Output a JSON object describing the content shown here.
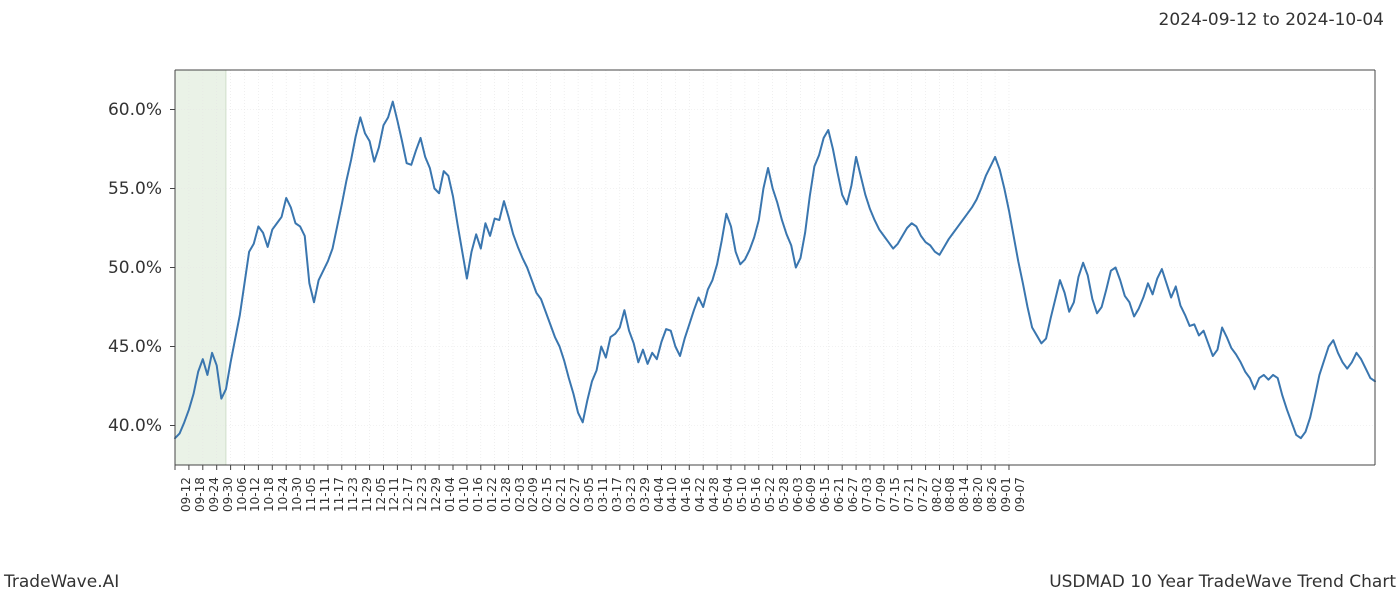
{
  "header": {
    "date_range": "2024-09-12 to 2024-10-04"
  },
  "footer": {
    "left": "TradeWave.AI",
    "right": "USDMAD 10 Year TradeWave Trend Chart"
  },
  "chart": {
    "type": "line",
    "background_color": "#ffffff",
    "line_color": "#3a76af",
    "line_width": 2,
    "grid_color": "#e5e5e5",
    "grid_dash": "1,2",
    "axis_color": "#333333",
    "spine_color": "#444444",
    "highlight_band": {
      "x_start": 0,
      "x_end": 11,
      "fill_color": "#d9e8d4",
      "fill_opacity": 0.55,
      "border_color": "#b8d0b0"
    },
    "y_axis": {
      "min": 37.5,
      "max": 62.5,
      "ticks": [
        40.0,
        45.0,
        50.0,
        55.0,
        60.0
      ],
      "tick_labels": [
        "40.0%",
        "45.0%",
        "50.0%",
        "55.0%",
        "60.0%"
      ],
      "label_fontsize": 17
    },
    "x_axis": {
      "tick_labels": [
        "09-12",
        "09-18",
        "09-24",
        "09-30",
        "10-06",
        "10-12",
        "10-18",
        "10-24",
        "10-30",
        "11-05",
        "11-11",
        "11-17",
        "11-23",
        "11-29",
        "12-05",
        "12-11",
        "12-17",
        "12-23",
        "12-29",
        "01-04",
        "01-10",
        "01-16",
        "01-22",
        "01-28",
        "02-03",
        "02-09",
        "02-15",
        "02-21",
        "02-27",
        "03-05",
        "03-11",
        "03-17",
        "03-23",
        "03-29",
        "04-04",
        "04-10",
        "04-16",
        "04-22",
        "04-28",
        "05-04",
        "05-10",
        "05-16",
        "05-22",
        "05-28",
        "06-03",
        "06-09",
        "06-15",
        "06-21",
        "06-27",
        "07-03",
        "07-09",
        "07-15",
        "07-21",
        "07-27",
        "08-02",
        "08-08",
        "08-14",
        "08-20",
        "08-26",
        "09-01",
        "09-07"
      ],
      "tick_step": 3,
      "label_fontsize": 12,
      "label_rotation": -90
    },
    "series": {
      "name": "USDMAD 10Y",
      "x_count": 184,
      "values": [
        39.2,
        39.5,
        40.2,
        41.0,
        42.0,
        43.4,
        44.2,
        43.2,
        44.6,
        43.8,
        41.7,
        42.3,
        44.0,
        45.5,
        47.0,
        49.0,
        51.0,
        51.5,
        52.6,
        52.2,
        51.3,
        52.4,
        52.8,
        53.2,
        54.4,
        53.8,
        52.8,
        52.6,
        52.0,
        49.0,
        47.8,
        49.2,
        49.8,
        50.4,
        51.2,
        52.6,
        54.0,
        55.5,
        56.8,
        58.3,
        59.5,
        58.5,
        58.0,
        56.7,
        57.6,
        59.0,
        59.5,
        60.5,
        59.3,
        58.0,
        56.6,
        56.5,
        57.4,
        58.2,
        57.0,
        56.3,
        55.0,
        54.7,
        56.1,
        55.8,
        54.5,
        52.7,
        51.0,
        49.3,
        51.0,
        52.1,
        51.2,
        52.8,
        52.0,
        53.1,
        53.0,
        54.2,
        53.2,
        52.1,
        51.3,
        50.6,
        50.0,
        49.2,
        48.4,
        48.0,
        47.2,
        46.4,
        45.6,
        45.0,
        44.1,
        43.0,
        42.0,
        40.8,
        40.2,
        41.6,
        42.8,
        43.5,
        45.0,
        44.3,
        45.6,
        45.8,
        46.2,
        47.3,
        46.0,
        45.2,
        44.0,
        44.8,
        43.9,
        44.6,
        44.2,
        45.3,
        46.1,
        46.0,
        45.0,
        44.4,
        45.5,
        46.4,
        47.3,
        48.1,
        47.5,
        48.6,
        49.2,
        50.2,
        51.7,
        53.4,
        52.6,
        51.0,
        50.2,
        50.5,
        51.1,
        51.9,
        53.0,
        55.0,
        56.3,
        55.0,
        54.1,
        53.0,
        52.1,
        51.4,
        50.0,
        50.6,
        52.2,
        54.5,
        56.4,
        57.1,
        58.2,
        58.7,
        57.5,
        56.0,
        54.6,
        54.0,
        55.2,
        57.0,
        55.8,
        54.6,
        53.7,
        53.0,
        52.4,
        52.0,
        51.6,
        51.2,
        51.5,
        52.0,
        52.5,
        52.8,
        52.6,
        52.0,
        51.6,
        51.4,
        51.0,
        50.8,
        51.3,
        51.8,
        52.2,
        52.6,
        53.0,
        53.4,
        53.8,
        54.3,
        55.0,
        55.8,
        56.4,
        57.0,
        56.2,
        55.0,
        53.6,
        52.0,
        50.4,
        49.0
      ]
    },
    "series_tail": {
      "values": [
        47.5,
        46.2,
        45.7,
        45.2,
        45.5,
        46.8,
        48.0,
        49.2,
        48.4,
        47.2,
        47.8,
        49.4,
        50.3,
        49.5,
        48.0,
        47.1,
        47.5,
        48.6,
        49.8,
        50.0,
        49.2,
        48.2,
        47.8,
        46.9,
        47.4,
        48.1,
        49.0,
        48.3,
        49.3,
        49.9,
        49.0,
        48.1,
        48.8,
        47.6,
        47.0,
        46.3,
        46.4,
        45.7,
        46.0,
        45.2,
        44.4,
        44.8,
        46.2,
        45.6,
        44.9,
        44.5,
        44.0,
        43.4,
        43.0,
        42.3,
        43.0,
        43.2,
        42.9,
        43.2,
        43.0,
        41.9,
        41.0,
        40.2,
        39.4,
        39.2,
        39.6,
        40.5,
        41.8,
        43.2,
        44.1,
        45.0,
        45.4,
        44.6,
        44.0,
        43.6,
        44.0,
        44.6,
        44.2,
        43.6,
        43.0,
        42.8
      ]
    }
  }
}
